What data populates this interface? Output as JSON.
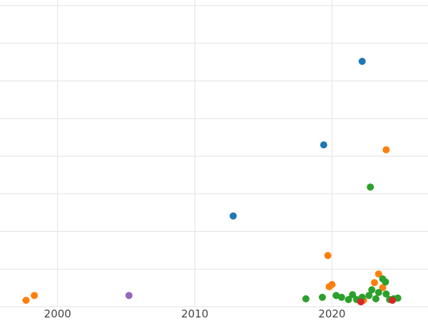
{
  "chart_data": {
    "type": "scatter",
    "title": "",
    "xlabel": "",
    "ylabel": "",
    "x_ticks": [
      "2000",
      "2010",
      "2020"
    ],
    "x_tick_values": [
      2000,
      2010,
      2020
    ],
    "x_range": [
      1995.8,
      2027.0
    ],
    "y_range": [
      0,
      8.15
    ],
    "y_gridline_step": 1,
    "grid": true,
    "legend_position": "none",
    "marker_radius": 5,
    "series": [
      {
        "name": "series-blue",
        "color": "#1f77b4",
        "points": [
          [
            2012.8,
            2.41
          ],
          [
            2019.4,
            4.3
          ],
          [
            2022.2,
            6.52
          ]
        ]
      },
      {
        "name": "series-orange",
        "color": "#ff7f0e",
        "points": [
          [
            1997.7,
            0.17
          ],
          [
            1998.3,
            0.3
          ],
          [
            2019.7,
            1.36
          ],
          [
            2019.8,
            0.53
          ],
          [
            2020.0,
            0.59
          ],
          [
            2022.3,
            0.17
          ],
          [
            2023.1,
            0.64
          ],
          [
            2023.4,
            0.87
          ],
          [
            2023.7,
            0.51
          ],
          [
            2023.95,
            4.17
          ]
        ]
      },
      {
        "name": "series-green",
        "color": "#2ca02c",
        "points": [
          [
            2018.1,
            0.21
          ],
          [
            2019.3,
            0.25
          ],
          [
            2020.3,
            0.3
          ],
          [
            2020.7,
            0.25
          ],
          [
            2021.2,
            0.19
          ],
          [
            2021.5,
            0.32
          ],
          [
            2021.8,
            0.19
          ],
          [
            2022.2,
            0.25
          ],
          [
            2022.7,
            0.3
          ],
          [
            2022.8,
            3.18
          ],
          [
            2022.9,
            0.45
          ],
          [
            2023.2,
            0.21
          ],
          [
            2023.4,
            0.38
          ],
          [
            2023.7,
            0.74
          ],
          [
            2023.9,
            0.66
          ],
          [
            2023.95,
            0.34
          ],
          [
            2024.2,
            0.19
          ],
          [
            2024.5,
            0.21
          ],
          [
            2024.8,
            0.23
          ]
        ]
      },
      {
        "name": "series-red",
        "color": "#d62728",
        "points": [
          [
            2022.1,
            0.13
          ],
          [
            2024.4,
            0.17
          ]
        ]
      },
      {
        "name": "series-purple",
        "color": "#9467bd",
        "points": [
          [
            2005.2,
            0.3
          ]
        ]
      }
    ]
  },
  "style": {
    "background_color": "#ffffff",
    "gridline_color": "#e2e2e2",
    "tick_label_color": "#444444",
    "tick_font_size": 15
  }
}
